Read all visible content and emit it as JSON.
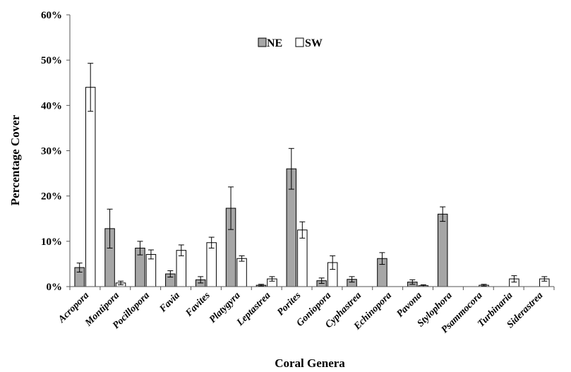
{
  "chart_data": {
    "type": "bar",
    "xlabel": "Coral Genera",
    "ylabel": "Percentage Cover",
    "ylim": [
      0,
      60
    ],
    "yticks": [
      "0%",
      "10%",
      "20%",
      "30%",
      "40%",
      "50%",
      "60%"
    ],
    "yunit": "%",
    "legend_position": "top-center",
    "grid": false,
    "categories": [
      "Acropora",
      "Montipora",
      "Pocillopora",
      "Favia",
      "Favites",
      "Platygyra",
      "Leptastrea",
      "Porites",
      "Goniopora",
      "Cyphastrea",
      "Echinopora",
      "Pavona",
      "Stylophora",
      "Psammocora",
      "Turbinaria",
      "Siderastrea"
    ],
    "series": [
      {
        "name": "NE",
        "color": "#a6a6a6",
        "values": [
          4.2,
          12.8,
          8.5,
          2.8,
          1.5,
          17.3,
          0.3,
          26.0,
          1.3,
          1.6,
          6.2,
          1.0,
          16.0,
          0,
          0,
          0
        ],
        "errors": [
          1.0,
          4.3,
          1.5,
          0.7,
          0.7,
          4.7,
          0.2,
          4.5,
          0.6,
          0.6,
          1.3,
          0.5,
          1.6,
          0,
          0,
          0
        ]
      },
      {
        "name": "SW",
        "color": "#ffffff",
        "values": [
          44.0,
          0.8,
          7.1,
          8.0,
          9.7,
          6.2,
          1.7,
          12.5,
          5.3,
          0,
          0,
          0.2,
          0,
          0.3,
          1.7,
          1.7
        ],
        "errors": [
          5.3,
          0.4,
          1.0,
          1.2,
          1.2,
          0.6,
          0.5,
          1.8,
          1.5,
          0,
          0,
          0.2,
          0,
          0.2,
          0.7,
          0.5
        ]
      }
    ]
  }
}
